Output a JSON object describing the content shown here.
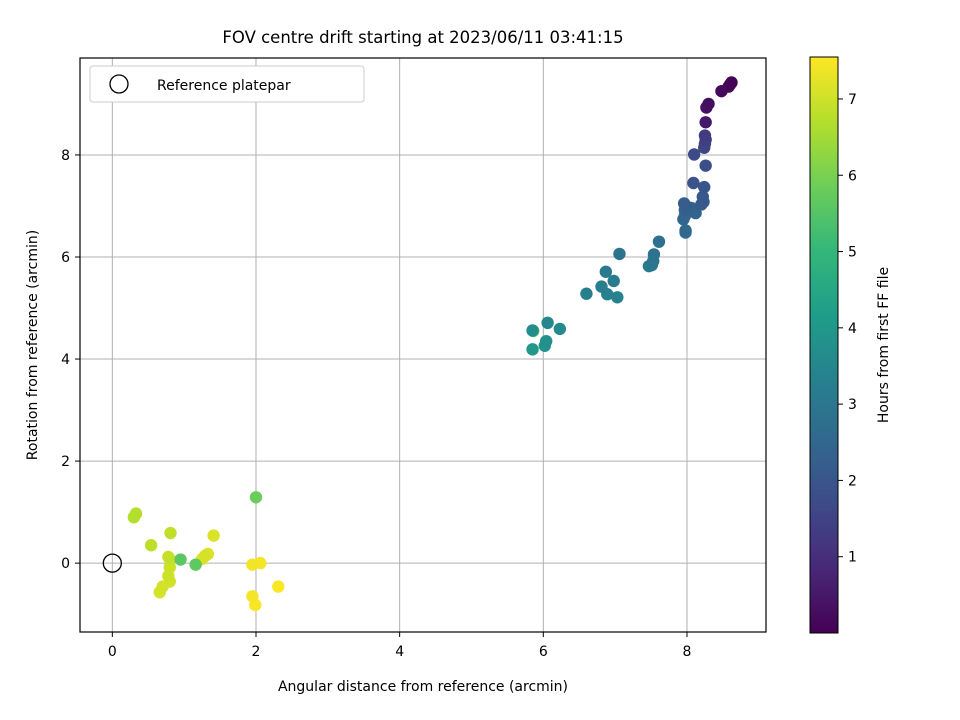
{
  "chart_data": {
    "type": "scatter",
    "title": "FOV centre drift starting at 2023/06/11 03:41:15",
    "xlabel": "Angular distance from reference (arcmin)",
    "ylabel": "Rotation from reference (arcmin)",
    "xlim": [
      -0.45,
      9.1
    ],
    "ylim": [
      -1.35,
      9.9
    ],
    "xticks": [
      0,
      2,
      4,
      6,
      8
    ],
    "xtick_labels": [
      "0",
      "2",
      "4",
      "6",
      "8"
    ],
    "yticks": [
      0,
      2,
      4,
      6,
      8
    ],
    "ytick_labels": [
      "0",
      "2",
      "4",
      "6",
      "8"
    ],
    "grid": true,
    "legend": {
      "location": "upper left",
      "entries": [
        {
          "label": "Reference platepar",
          "marker": "hollow-circle"
        }
      ]
    },
    "reference_point": {
      "x": 0,
      "y": 0
    },
    "colorbar": {
      "label": "Hours from first FF file",
      "colormap": "viridis",
      "range": [
        0,
        7.55
      ],
      "ticks": [
        1,
        2,
        3,
        4,
        5,
        6,
        7
      ],
      "tick_labels": [
        "1",
        "2",
        "3",
        "4",
        "5",
        "6",
        "7"
      ]
    },
    "viridis_colors": [
      "#440154",
      "#482878",
      "#3e4a89",
      "#31688e",
      "#26828e",
      "#1f9e89",
      "#35b779",
      "#6ece58",
      "#b5de2b",
      "#fde725"
    ],
    "points": [
      {
        "x": 8.62,
        "y": 9.42,
        "h": 0.05
      },
      {
        "x": 8.6,
        "y": 9.38,
        "h": 0.1
      },
      {
        "x": 8.58,
        "y": 9.34,
        "h": 0.15
      },
      {
        "x": 8.48,
        "y": 9.25,
        "h": 0.2
      },
      {
        "x": 8.3,
        "y": 9.0,
        "h": 0.3
      },
      {
        "x": 8.27,
        "y": 8.93,
        "h": 0.35
      },
      {
        "x": 8.26,
        "y": 8.64,
        "h": 0.5
      },
      {
        "x": 8.25,
        "y": 8.38,
        "h": 1.3
      },
      {
        "x": 8.26,
        "y": 8.3,
        "h": 1.4
      },
      {
        "x": 8.25,
        "y": 8.22,
        "h": 1.5
      },
      {
        "x": 8.24,
        "y": 8.14,
        "h": 1.6
      },
      {
        "x": 8.1,
        "y": 8.01,
        "h": 1.7
      },
      {
        "x": 8.26,
        "y": 7.79,
        "h": 1.8
      },
      {
        "x": 8.09,
        "y": 7.45,
        "h": 1.9
      },
      {
        "x": 8.24,
        "y": 7.37,
        "h": 2.0
      },
      {
        "x": 8.22,
        "y": 7.18,
        "h": 2.05
      },
      {
        "x": 8.23,
        "y": 7.08,
        "h": 2.1
      },
      {
        "x": 8.2,
        "y": 7.03,
        "h": 2.15
      },
      {
        "x": 7.96,
        "y": 7.05,
        "h": 2.2
      },
      {
        "x": 8.0,
        "y": 6.98,
        "h": 2.25
      },
      {
        "x": 7.97,
        "y": 6.92,
        "h": 2.3
      },
      {
        "x": 8.06,
        "y": 6.96,
        "h": 2.35
      },
      {
        "x": 8.12,
        "y": 6.86,
        "h": 2.4
      },
      {
        "x": 7.97,
        "y": 6.8,
        "h": 2.45
      },
      {
        "x": 7.95,
        "y": 6.74,
        "h": 2.5
      },
      {
        "x": 7.98,
        "y": 6.52,
        "h": 2.55
      },
      {
        "x": 7.98,
        "y": 6.48,
        "h": 2.6
      },
      {
        "x": 7.61,
        "y": 6.3,
        "h": 2.8
      },
      {
        "x": 7.54,
        "y": 6.05,
        "h": 2.85
      },
      {
        "x": 7.06,
        "y": 6.06,
        "h": 2.9
      },
      {
        "x": 7.53,
        "y": 5.92,
        "h": 2.95
      },
      {
        "x": 7.51,
        "y": 5.84,
        "h": 3.0
      },
      {
        "x": 7.47,
        "y": 5.82,
        "h": 3.05
      },
      {
        "x": 6.87,
        "y": 5.71,
        "h": 3.1
      },
      {
        "x": 6.98,
        "y": 5.53,
        "h": 3.15
      },
      {
        "x": 6.81,
        "y": 5.42,
        "h": 3.2
      },
      {
        "x": 6.6,
        "y": 5.28,
        "h": 3.25
      },
      {
        "x": 6.89,
        "y": 5.27,
        "h": 3.3
      },
      {
        "x": 7.03,
        "y": 5.21,
        "h": 3.35
      },
      {
        "x": 6.06,
        "y": 4.71,
        "h": 3.5
      },
      {
        "x": 6.23,
        "y": 4.59,
        "h": 3.6
      },
      {
        "x": 5.85,
        "y": 4.56,
        "h": 3.7
      },
      {
        "x": 6.04,
        "y": 4.35,
        "h": 3.8
      },
      {
        "x": 6.02,
        "y": 4.26,
        "h": 3.9
      },
      {
        "x": 5.85,
        "y": 4.19,
        "h": 4.0
      },
      {
        "x": 5.86,
        "y": 4.55,
        "h": 5.7
      },
      {
        "x": 2.0,
        "y": 1.29,
        "h": 5.8
      },
      {
        "x": 0.95,
        "y": 0.07,
        "h": 5.6
      },
      {
        "x": 1.16,
        "y": -0.03,
        "h": 5.65
      },
      {
        "x": 0.3,
        "y": 0.9,
        "h": 6.7
      },
      {
        "x": 0.33,
        "y": 0.97,
        "h": 6.75
      },
      {
        "x": 0.54,
        "y": 0.35,
        "h": 6.8
      },
      {
        "x": 0.81,
        "y": 0.59,
        "h": 6.85
      },
      {
        "x": 0.78,
        "y": 0.12,
        "h": 6.9
      },
      {
        "x": 0.81,
        "y": 0.06,
        "h": 6.95
      },
      {
        "x": 0.8,
        "y": -0.08,
        "h": 7.0
      },
      {
        "x": 0.78,
        "y": -0.25,
        "h": 7.0
      },
      {
        "x": 0.8,
        "y": -0.36,
        "h": 7.05
      },
      {
        "x": 0.7,
        "y": -0.46,
        "h": 7.05
      },
      {
        "x": 0.66,
        "y": -0.57,
        "h": 7.1
      },
      {
        "x": 1.29,
        "y": 0.14,
        "h": 7.1
      },
      {
        "x": 1.33,
        "y": 0.18,
        "h": 7.15
      },
      {
        "x": 1.41,
        "y": 0.54,
        "h": 7.15
      },
      {
        "x": 1.25,
        "y": 0.08,
        "h": 7.2
      },
      {
        "x": 1.95,
        "y": -0.03,
        "h": 7.4
      },
      {
        "x": 2.06,
        "y": 0.0,
        "h": 7.45
      },
      {
        "x": 1.95,
        "y": -0.65,
        "h": 7.45
      },
      {
        "x": 1.99,
        "y": -0.82,
        "h": 7.5
      },
      {
        "x": 2.31,
        "y": -0.46,
        "h": 7.5
      }
    ]
  }
}
